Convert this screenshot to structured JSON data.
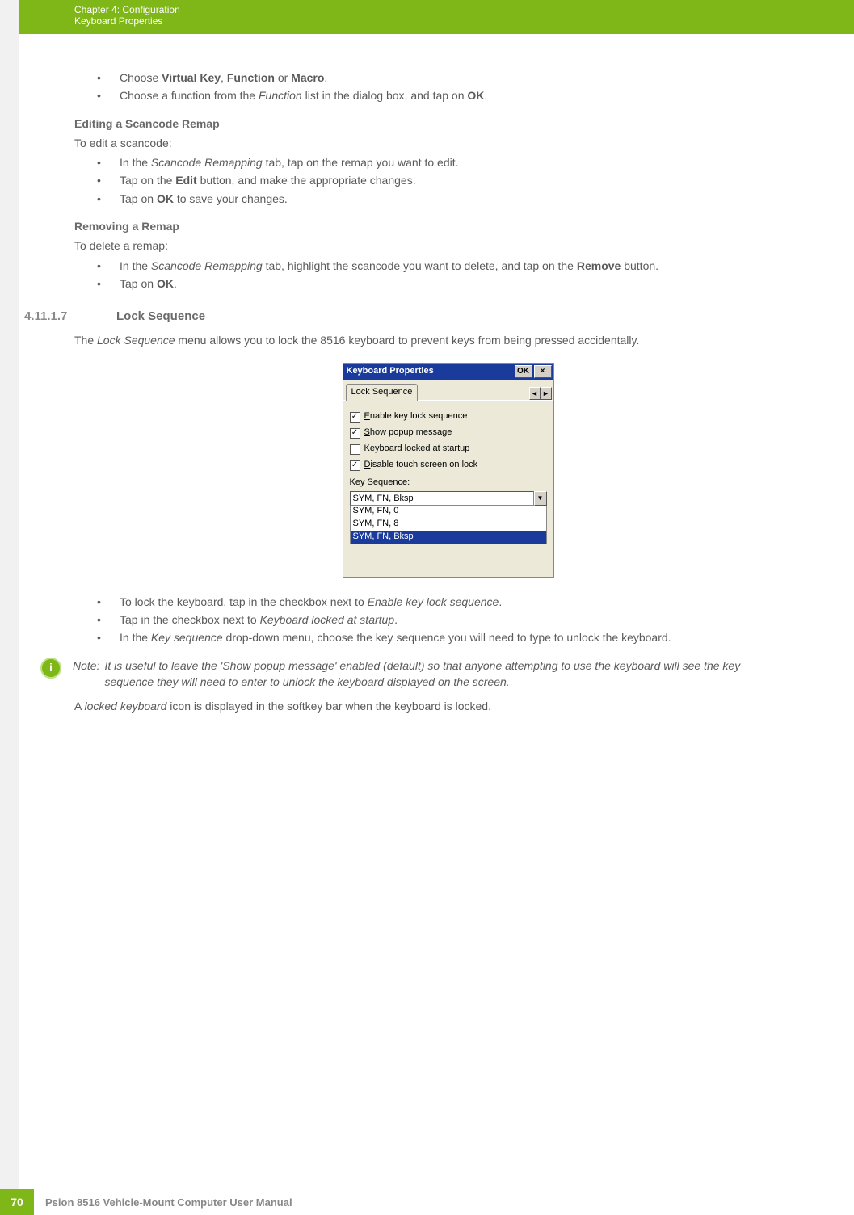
{
  "header": {
    "chapter": "Chapter 4:  Configuration",
    "section": "Keyboard Properties"
  },
  "top_bullets": [
    {
      "pre": "Choose ",
      "b1": "Virtual Key",
      "mid": ", ",
      "b2": "Function",
      "mid2": " or ",
      "b3": "Macro",
      "post": "."
    },
    {
      "pre": "Choose a function from the ",
      "i1": "Function",
      "mid": " list in the dialog box, and tap on ",
      "b1": "OK",
      "post": "."
    }
  ],
  "edit_hdr": "Editing a Scancode Remap",
  "edit_intro": "To edit a scancode:",
  "edit_bullets": [
    {
      "pre": "In the ",
      "i1": "Scancode Remapping",
      "mid": " tab, tap on the remap you want to edit."
    },
    {
      "pre": "Tap on the ",
      "b1": "Edit",
      "mid": " button, and make the appropriate changes."
    },
    {
      "pre": "Tap on ",
      "b1": "OK",
      "mid": " to save your changes."
    }
  ],
  "remove_hdr": "Removing a Remap",
  "remove_intro": "To delete a remap:",
  "remove_bullets": [
    {
      "pre": "In the ",
      "i1": "Scancode Remapping",
      "mid": " tab, highlight the scancode you want to delete, and tap on the ",
      "b1": "Remove",
      "post": " button."
    },
    {
      "pre": "Tap on ",
      "b1": "OK",
      "post": "."
    }
  ],
  "lock": {
    "num": "4.11.1.7",
    "title": "Lock Sequence",
    "para": "The Lock Sequence menu allows you to lock the 8516 keyboard to prevent keys from being pressed accidentally.",
    "para_plain_pre": "The ",
    "para_i": "Lock Sequence",
    "para_plain_post": " menu allows you to lock the 8516 keyboard to prevent keys from being pressed accidentally."
  },
  "dialog": {
    "title": "Keyboard Properties",
    "ok": "OK",
    "close": "×",
    "tab": "Lock Sequence",
    "tab_left": "◄",
    "tab_right": "►",
    "checks": [
      {
        "checked": true,
        "ul": "E",
        "rest": "nable key lock sequence"
      },
      {
        "checked": true,
        "ul": "S",
        "rest": "how popup message"
      },
      {
        "checked": false,
        "ul": "K",
        "rest": "eyboard locked at startup"
      },
      {
        "checked": true,
        "ul": "D",
        "rest": "isable touch screen on lock"
      }
    ],
    "key_seq_label_pre": "Ke",
    "key_seq_label_ul": "y",
    "key_seq_label_post": " Sequence:",
    "combo_value": "SYM, FN, Bksp",
    "combo_arrow": "▼",
    "options": [
      {
        "text": "SYM, FN, 0",
        "sel": false
      },
      {
        "text": "SYM, FN, 8",
        "sel": false
      },
      {
        "text": "SYM, FN, Bksp",
        "sel": true
      }
    ]
  },
  "after_bullets": [
    {
      "pre": "To lock the keyboard, tap in the checkbox next to ",
      "i1": "Enable key lock sequence",
      "post": "."
    },
    {
      "pre": "Tap in the checkbox next to ",
      "i1": "Keyboard locked at startup",
      "post": "."
    },
    {
      "pre": "In the ",
      "i1": "Key sequence",
      "mid": " drop-down menu, choose the key sequence you will need to type to unlock the keyboard."
    }
  ],
  "note": {
    "label": "Note:",
    "text": "It is useful to leave the 'Show popup message' enabled (default) so that anyone attempting to use the keyboard will see the key sequence they will need to enter to unlock the keyboard displayed on the screen."
  },
  "locked_line_pre": "A ",
  "locked_line_i": "locked keyboard",
  "locked_line_post": " icon is displayed in the softkey bar when the keyboard is locked.",
  "footer": {
    "page": "70",
    "title": "Psion 8516 Vehicle-Mount Computer User Manual"
  }
}
